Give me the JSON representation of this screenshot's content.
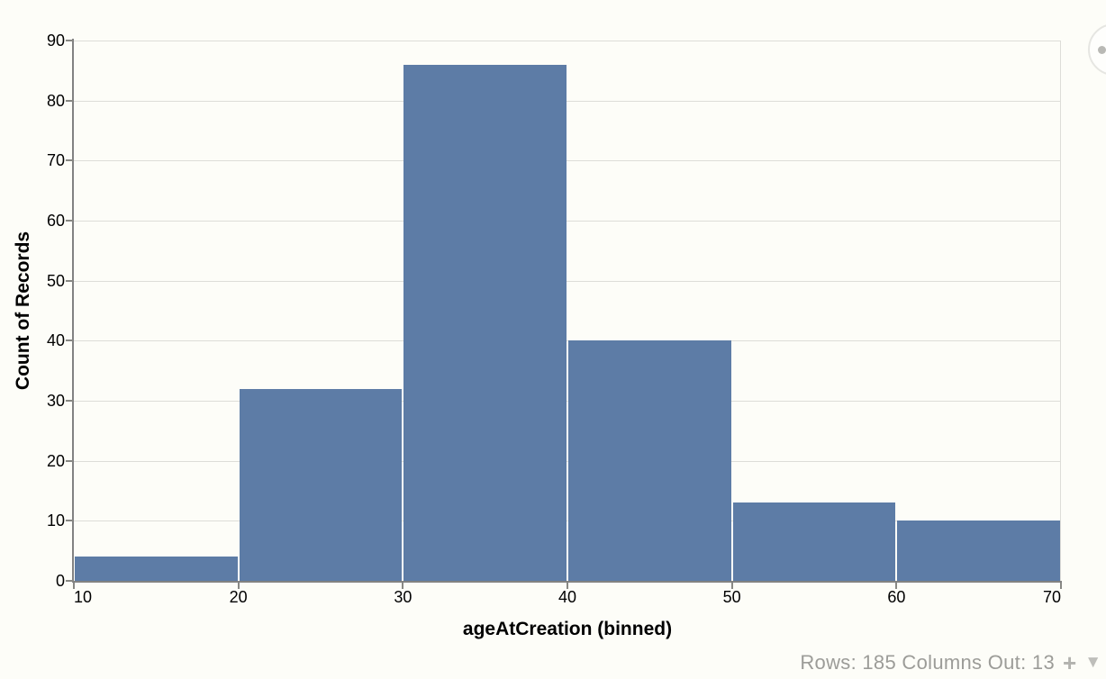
{
  "chart_data": {
    "type": "bar",
    "subtype": "histogram",
    "title": "",
    "xlabel": "ageAtCreation (binned)",
    "ylabel": "Count of Records",
    "bin_edges": [
      10,
      20,
      30,
      40,
      50,
      60,
      70
    ],
    "values": [
      4,
      32,
      86,
      40,
      13,
      10
    ],
    "x_ticks": [
      10,
      20,
      30,
      40,
      50,
      60,
      70
    ],
    "y_ticks": [
      0,
      10,
      20,
      30,
      40,
      50,
      60,
      70,
      80,
      90
    ],
    "xlim": [
      10,
      70
    ],
    "ylim": [
      0,
      90
    ],
    "grid": true,
    "legend": "none",
    "bar_color": "#5d7ca6",
    "gridline_color": "#ddddd8",
    "axis_line_color": "#828282",
    "label_color": "#000000"
  },
  "footer": {
    "status_text": "Rows: 185 Columns Out: 13",
    "rows_label": "Rows:",
    "rows_value": "185",
    "columns_out_label": "Columns Out:",
    "columns_out_value": "13",
    "plus_icon_glyph": "+",
    "dropdown_icon_glyph": "▼",
    "text_color": "#9c9c98"
  },
  "chart_menu": {
    "icon": "ellipsis-dots"
  }
}
